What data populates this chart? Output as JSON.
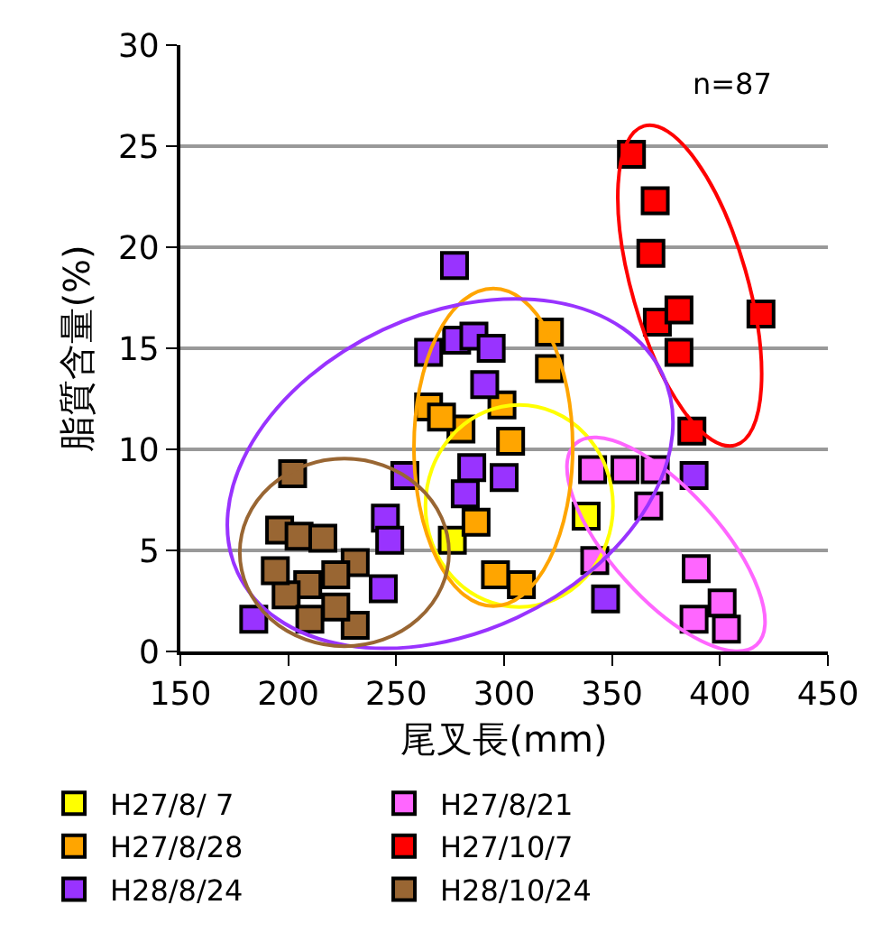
{
  "chart_data": {
    "type": "scatter",
    "xlabel": "尾叉長(mm)",
    "ylabel": "脂質含量(%)",
    "xlim": [
      150,
      450
    ],
    "xticks": [
      150,
      200,
      250,
      300,
      350,
      400,
      450
    ],
    "ylim": [
      0,
      30
    ],
    "yticks": [
      0,
      5,
      10,
      15,
      20,
      25,
      30
    ],
    "grid": "y",
    "legend": "bottom",
    "marker": "square",
    "annotations": [
      "n=87"
    ],
    "series": [
      {
        "name": "H27/8/ 7",
        "color": "#ffff00",
        "x": [
          276,
          338
        ],
        "values": [
          5.5,
          6.7
        ]
      },
      {
        "name": "H27/8/21",
        "color": "#ff66ff",
        "x": [
          341,
          356,
          370,
          367,
          342,
          389,
          388,
          401,
          403
        ],
        "values": [
          9.0,
          9.0,
          9.0,
          7.2,
          4.5,
          4.1,
          1.6,
          2.4,
          1.1
        ]
      },
      {
        "name": "H27/8/28",
        "color": "#ffa500",
        "x": [
          321,
          321,
          265,
          280,
          299,
          303,
          287,
          296,
          308,
          271
        ],
        "values": [
          15.8,
          14.0,
          12.1,
          11.0,
          12.2,
          10.4,
          6.4,
          3.8,
          3.3,
          11.6
        ]
      },
      {
        "name": "H27/10/7",
        "color": "#ff0000",
        "x": [
          359,
          370,
          368,
          371,
          381,
          381,
          419,
          387
        ],
        "values": [
          24.6,
          22.3,
          19.7,
          16.3,
          16.9,
          14.8,
          16.7,
          10.9
        ]
      },
      {
        "name": "H28/8/24",
        "color": "#9933ff",
        "x": [
          277,
          265,
          278,
          286,
          294,
          291,
          285,
          300,
          282,
          254,
          245,
          247,
          244,
          184,
          388,
          347
        ],
        "values": [
          19.1,
          14.8,
          15.4,
          15.6,
          15.0,
          13.2,
          9.1,
          8.6,
          7.8,
          8.7,
          6.6,
          5.5,
          3.1,
          1.6,
          8.7,
          2.6
        ]
      },
      {
        "name": "H28/10/24",
        "color": "#996633",
        "x": [
          202,
          196,
          205,
          216,
          231,
          209,
          199,
          222,
          210,
          231,
          194,
          222
        ],
        "values": [
          8.8,
          6.0,
          5.7,
          5.6,
          4.4,
          3.3,
          2.8,
          3.8,
          1.6,
          1.3,
          4.0,
          2.2
        ]
      }
    ]
  }
}
